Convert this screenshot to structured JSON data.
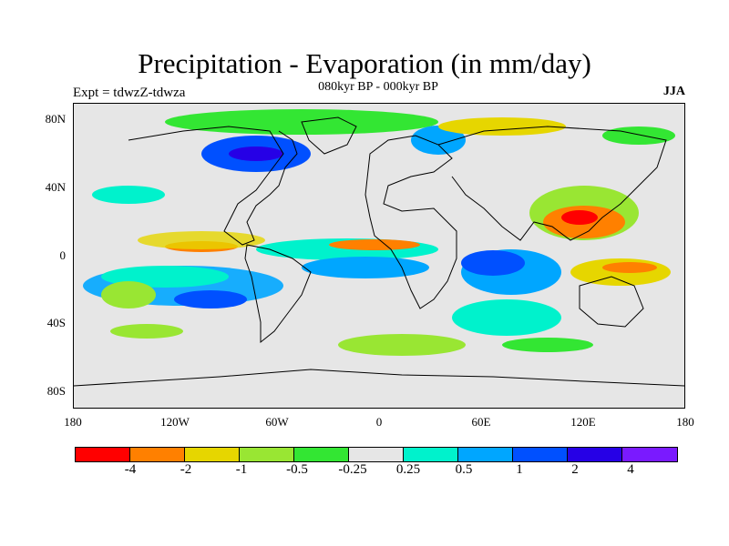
{
  "title": "Precipitation - Evaporation (in mm/day)",
  "subtitle": "080kyr BP - 000kyr BP",
  "experiment": "Expt = tdwzZ-tdwza",
  "season": "JJA",
  "map": {
    "lon_range": [
      -180,
      180
    ],
    "lat_range": [
      -90,
      90
    ],
    "lon_ticks": [
      "180",
      "120W",
      "60W",
      "0",
      "60E",
      "120E",
      "180"
    ],
    "lat_ticks": [
      "80N",
      "40N",
      "0",
      "40S",
      "80S"
    ],
    "background_color": "#e6e6e6"
  },
  "colorbar": {
    "colors": [
      "#ff0000",
      "#ff8000",
      "#e6d600",
      "#99e633",
      "#33e633",
      "#e6e6e6",
      "#00f2cc",
      "#00a6ff",
      "#0050ff",
      "#2600e6",
      "#7a1aff"
    ],
    "labels": [
      "-4",
      "-2",
      "-1",
      "-0.5",
      "-0.25",
      "0.25",
      "0.5",
      "1",
      "2",
      "4"
    ]
  }
}
